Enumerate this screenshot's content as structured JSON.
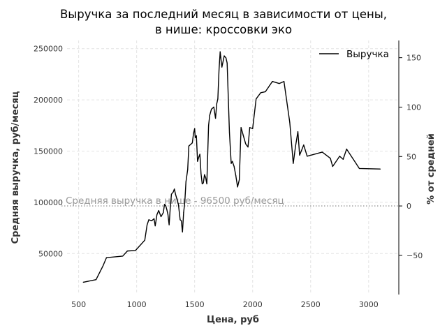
{
  "chart_data": {
    "type": "line",
    "title_line1": "Выручка за последний месяц в зависимости от цены,",
    "title_line2": "в нише: кроссовки эко",
    "xlabel": "Цена, руб",
    "ylabel": "Средняя выручка, руб/месяц",
    "ylabel_right": "% от средней",
    "xlim": [
      400,
      3260
    ],
    "ylim": [
      10000,
      258000
    ],
    "ylim_right": [
      -89.6,
      167.4
    ],
    "x_ticks": [
      500,
      1000,
      1500,
      2000,
      2500,
      3000
    ],
    "y_ticks": [
      50000,
      100000,
      150000,
      200000,
      250000
    ],
    "y_ticks_right": [
      -50,
      0,
      50,
      100,
      150
    ],
    "grid": true,
    "legend_position": "top-right",
    "series": [
      {
        "name": "Выручка",
        "color": "#000000",
        "points": [
          [
            540,
            22000
          ],
          [
            650,
            24500
          ],
          [
            710,
            38000
          ],
          [
            740,
            46000
          ],
          [
            880,
            47500
          ],
          [
            920,
            52500
          ],
          [
            990,
            53000
          ],
          [
            1070,
            63000
          ],
          [
            1090,
            78000
          ],
          [
            1105,
            83000
          ],
          [
            1130,
            82000
          ],
          [
            1150,
            84000
          ],
          [
            1160,
            77000
          ],
          [
            1175,
            88000
          ],
          [
            1190,
            92000
          ],
          [
            1210,
            86000
          ],
          [
            1230,
            90000
          ],
          [
            1240,
            98000
          ],
          [
            1250,
            97000
          ],
          [
            1260,
            93000
          ],
          [
            1270,
            88000
          ],
          [
            1280,
            78000
          ],
          [
            1290,
            95000
          ],
          [
            1300,
            108000
          ],
          [
            1315,
            110000
          ],
          [
            1325,
            113000
          ],
          [
            1335,
            108000
          ],
          [
            1350,
            102000
          ],
          [
            1360,
            98000
          ],
          [
            1375,
            83000
          ],
          [
            1385,
            82000
          ],
          [
            1395,
            71000
          ],
          [
            1405,
            90000
          ],
          [
            1415,
            100000
          ],
          [
            1425,
            120000
          ],
          [
            1440,
            132000
          ],
          [
            1450,
            155000
          ],
          [
            1470,
            157000
          ],
          [
            1480,
            158000
          ],
          [
            1490,
            167000
          ],
          [
            1500,
            172000
          ],
          [
            1505,
            163000
          ],
          [
            1515,
            165000
          ],
          [
            1525,
            140000
          ],
          [
            1535,
            144000
          ],
          [
            1545,
            147000
          ],
          [
            1555,
            128000
          ],
          [
            1565,
            118000
          ],
          [
            1575,
            119000
          ],
          [
            1585,
            127000
          ],
          [
            1595,
            124000
          ],
          [
            1605,
            118000
          ],
          [
            1620,
            175000
          ],
          [
            1630,
            185000
          ],
          [
            1645,
            191000
          ],
          [
            1665,
            193000
          ],
          [
            1680,
            182000
          ],
          [
            1690,
            196000
          ],
          [
            1700,
            201000
          ],
          [
            1710,
            229000
          ],
          [
            1720,
            247000
          ],
          [
            1735,
            232000
          ],
          [
            1755,
            243000
          ],
          [
            1770,
            241000
          ],
          [
            1780,
            236000
          ],
          [
            1800,
            168000
          ],
          [
            1815,
            138000
          ],
          [
            1825,
            140000
          ],
          [
            1840,
            135000
          ],
          [
            1855,
            126000
          ],
          [
            1870,
            115000
          ],
          [
            1885,
            122000
          ],
          [
            1900,
            173000
          ],
          [
            1920,
            165000
          ],
          [
            1940,
            157000
          ],
          [
            1960,
            154000
          ],
          [
            1975,
            173000
          ],
          [
            2000,
            172000
          ],
          [
            2030,
            201000
          ],
          [
            2070,
            207000
          ],
          [
            2110,
            208000
          ],
          [
            2170,
            218000
          ],
          [
            2230,
            216000
          ],
          [
            2270,
            218000
          ],
          [
            2320,
            178000
          ],
          [
            2350,
            138000
          ],
          [
            2370,
            155000
          ],
          [
            2390,
            169000
          ],
          [
            2405,
            146000
          ],
          [
            2440,
            156000
          ],
          [
            2470,
            145000
          ],
          [
            2600,
            149000
          ],
          [
            2670,
            143000
          ],
          [
            2690,
            135000
          ],
          [
            2750,
            145000
          ],
          [
            2780,
            142000
          ],
          [
            2810,
            152000
          ],
          [
            2920,
            133000
          ],
          [
            3100,
            132500
          ]
        ]
      }
    ],
    "annotations": [
      {
        "text": "Средняя выручка в нише - 96500 руб/месяц",
        "y": 96500,
        "style": "dotted"
      }
    ]
  }
}
